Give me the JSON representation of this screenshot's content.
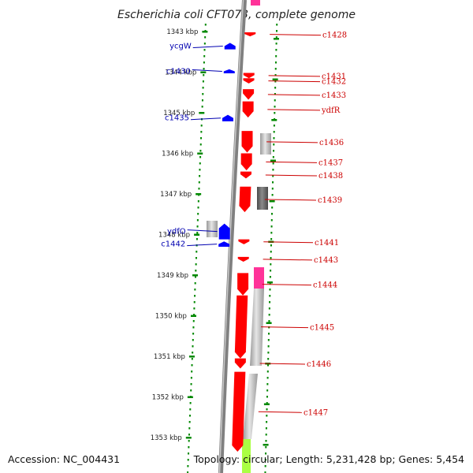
{
  "title": "Escherichia coli CFT073, complete genome",
  "accession": "Accession: NC_004431",
  "topology": "Topology: circular; Length: 5,231,428 bp; Genes: 5,454",
  "colors": {
    "forward_gene": "#0000ff",
    "reverse_gene": "#ff0000",
    "backbone": "#808080",
    "scale_dots": "#008800",
    "left_label": "#0000b0",
    "right_label": "#cc0000",
    "highlight_pink": "#ff3399",
    "highlight_lime": "#aaff44"
  },
  "scale": {
    "unit": "kbp",
    "ticks": [
      {
        "kbp": 1343,
        "label": "1343 kbp"
      },
      {
        "kbp": 1344,
        "label": "1344 kbp"
      },
      {
        "kbp": 1345,
        "label": "1345 kbp"
      },
      {
        "kbp": 1346,
        "label": "1346 kbp"
      },
      {
        "kbp": 1347,
        "label": "1347 kbp"
      },
      {
        "kbp": 1348,
        "label": "1348 kbp"
      },
      {
        "kbp": 1349,
        "label": "1349 kbp"
      },
      {
        "kbp": 1350,
        "label": "1350 kbp"
      },
      {
        "kbp": 1351,
        "label": "1351 kbp"
      },
      {
        "kbp": 1352,
        "label": "1352 kbp"
      },
      {
        "kbp": 1353,
        "label": "1353 kbp"
      }
    ]
  },
  "forward_genes": [
    {
      "label": "ycgW",
      "start_kbp": 1343.28,
      "end_kbp": 1343.44
    },
    {
      "label": "c1430",
      "start_kbp": 1343.93,
      "end_kbp": 1344.03
    },
    {
      "label": "c1435",
      "start_kbp": 1345.05,
      "end_kbp": 1345.21
    },
    {
      "label": "ydfO",
      "start_kbp": 1347.73,
      "end_kbp": 1348.12
    },
    {
      "label": "c1442",
      "start_kbp": 1348.17,
      "end_kbp": 1348.3
    }
  ],
  "reverse_genes": [
    {
      "label": "c1428",
      "start_kbp": 1343.02,
      "end_kbp": 1343.12
    },
    {
      "label": "c1431",
      "start_kbp": 1344.02,
      "end_kbp": 1344.15
    },
    {
      "label": "c1432",
      "start_kbp": 1344.15,
      "end_kbp": 1344.28
    },
    {
      "label": "c1433",
      "start_kbp": 1344.42,
      "end_kbp": 1344.68
    },
    {
      "label": "ydfR",
      "start_kbp": 1344.72,
      "end_kbp": 1345.12
    },
    {
      "label": "c1436",
      "start_kbp": 1345.45,
      "end_kbp": 1345.98
    },
    {
      "label": "c1437",
      "start_kbp": 1346.0,
      "end_kbp": 1346.42
    },
    {
      "label": "c1438",
      "start_kbp": 1346.45,
      "end_kbp": 1346.62
    },
    {
      "label": "c1439",
      "start_kbp": 1346.82,
      "end_kbp": 1347.45
    },
    {
      "label": "c1441",
      "start_kbp": 1348.12,
      "end_kbp": 1348.24
    },
    {
      "label": "c1443",
      "start_kbp": 1348.55,
      "end_kbp": 1348.67
    },
    {
      "label": "c1444",
      "start_kbp": 1348.95,
      "end_kbp": 1349.5
    },
    {
      "label": "c1445",
      "start_kbp": 1349.5,
      "end_kbp": 1351.05
    },
    {
      "label": "c1446",
      "start_kbp": 1351.05,
      "end_kbp": 1351.3
    },
    {
      "label": "c1447",
      "start_kbp": 1351.38,
      "end_kbp": 1353.35
    }
  ]
}
